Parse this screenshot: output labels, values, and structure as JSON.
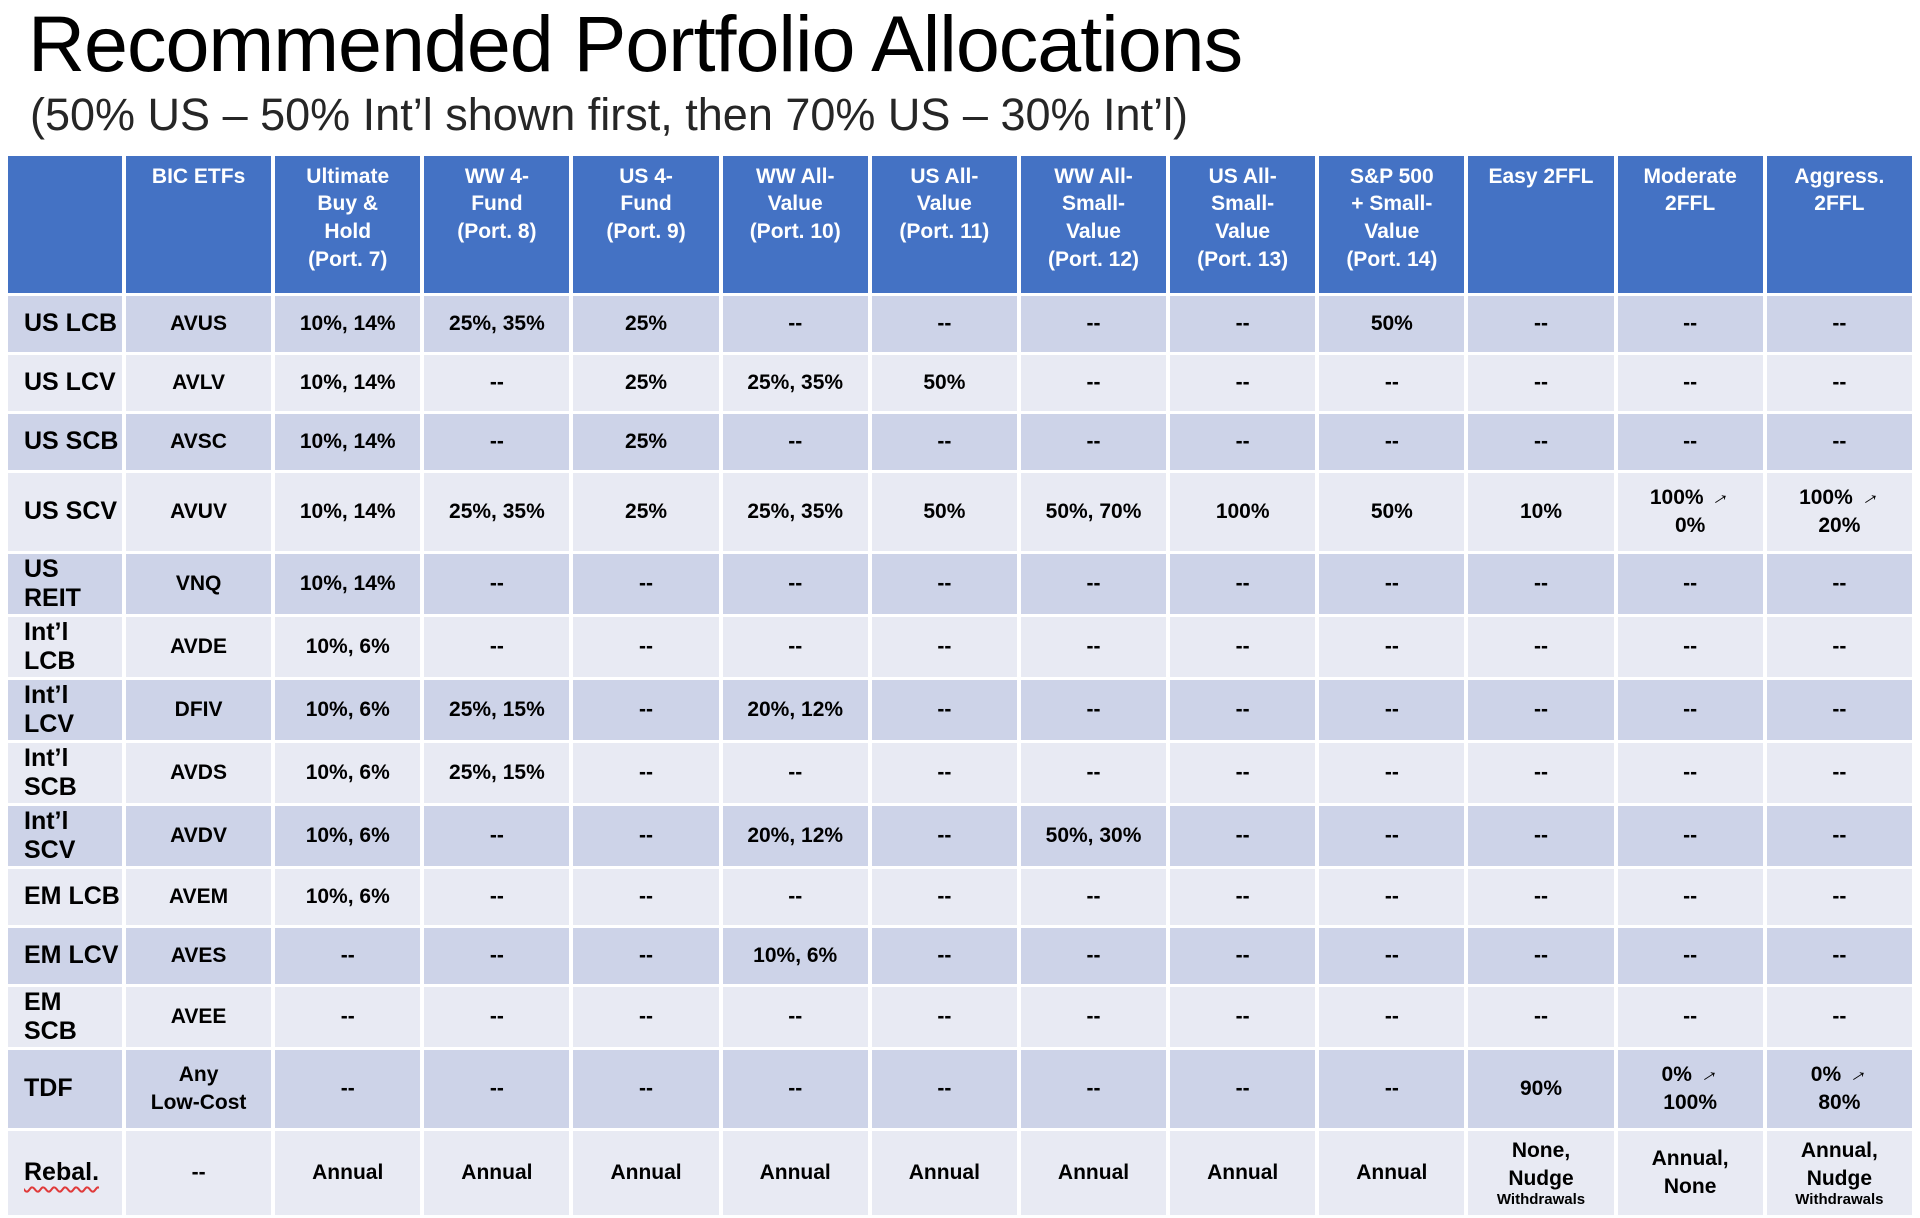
{
  "page": {
    "title": "Recommended Portfolio Allocations",
    "subtitle": "(50% US – 50% Int’l shown first, then 70% US – 30% Int’l)"
  },
  "colors": {
    "header_bg": "#4472C4",
    "header_text": "#FFFFFF",
    "band_dark": "#CDD3E8",
    "band_light": "#E8EAF3",
    "spellcheck_underline": "#E03A3A"
  },
  "table": {
    "columns": [
      "",
      "BIC ETFs",
      "Ultimate\nBuy &\nHold\n(Port. 7)",
      "WW 4-\nFund\n(Port. 8)",
      "US 4-\nFund\n(Port. 9)",
      "WW All-\nValue\n(Port. 10)",
      "US All-\nValue\n(Port. 11)",
      "WW All-\nSmall-\nValue\n(Port. 12)",
      "US All-\nSmall-\nValue\n(Port. 13)",
      "S&P 500\n+ Small-\nValue\n(Port. 14)",
      "Easy 2FFL",
      "Moderate\n2FFL",
      "Aggress.\n2FFL"
    ],
    "rows": [
      {
        "label": "US LCB",
        "size": "normal",
        "cells": [
          "AVUS",
          "10%, 14%",
          "25%, 35%",
          "25%",
          "--",
          "--",
          "--",
          "--",
          "50%",
          "--",
          "--",
          "--"
        ]
      },
      {
        "label": "US LCV",
        "size": "normal",
        "cells": [
          "AVLV",
          "10%, 14%",
          "--",
          "25%",
          "25%, 35%",
          "50%",
          "--",
          "--",
          "--",
          "--",
          "--",
          "--"
        ]
      },
      {
        "label": "US SCB",
        "size": "normal",
        "cells": [
          "AVSC",
          "10%, 14%",
          "--",
          "25%",
          "--",
          "--",
          "--",
          "--",
          "--",
          "--",
          "--",
          "--"
        ]
      },
      {
        "label": "US SCV",
        "size": "tall",
        "cells": [
          "AVUV",
          "10%, 14%",
          "25%, 35%",
          "25%",
          "25%, 35%",
          "50%",
          "50%, 70%",
          "100%",
          "50%",
          "10%",
          "100% →\n0%",
          "100% →\n20%"
        ]
      },
      {
        "label": "US REIT",
        "size": "normal",
        "cells": [
          "VNQ",
          "10%, 14%",
          "--",
          "--",
          "--",
          "--",
          "--",
          "--",
          "--",
          "--",
          "--",
          "--"
        ]
      },
      {
        "label": "Int’l LCB",
        "size": "normal",
        "cells": [
          "AVDE",
          "10%, 6%",
          "--",
          "--",
          "--",
          "--",
          "--",
          "--",
          "--",
          "--",
          "--",
          "--"
        ]
      },
      {
        "label": "Int’l LCV",
        "size": "normal",
        "cells": [
          "DFIV",
          "10%, 6%",
          "25%, 15%",
          "--",
          "20%, 12%",
          "--",
          "--",
          "--",
          "--",
          "--",
          "--",
          "--"
        ]
      },
      {
        "label": "Int’l SCB",
        "size": "normal",
        "cells": [
          "AVDS",
          "10%, 6%",
          "25%, 15%",
          "--",
          "--",
          "--",
          "--",
          "--",
          "--",
          "--",
          "--",
          "--"
        ]
      },
      {
        "label": "Int’l SCV",
        "size": "normal",
        "cells": [
          "AVDV",
          "10%, 6%",
          "--",
          "--",
          "20%, 12%",
          "--",
          "50%, 30%",
          "--",
          "--",
          "--",
          "--",
          "--"
        ]
      },
      {
        "label": "EM LCB",
        "size": "normal",
        "cells": [
          "AVEM",
          "10%, 6%",
          "--",
          "--",
          "--",
          "--",
          "--",
          "--",
          "--",
          "--",
          "--",
          "--"
        ]
      },
      {
        "label": "EM LCV",
        "size": "normal",
        "cells": [
          "AVES",
          "--",
          "--",
          "--",
          "10%, 6%",
          "--",
          "--",
          "--",
          "--",
          "--",
          "--",
          "--"
        ]
      },
      {
        "label": "EM SCB",
        "size": "normal",
        "cells": [
          "AVEE",
          "--",
          "--",
          "--",
          "--",
          "--",
          "--",
          "--",
          "--",
          "--",
          "--",
          "--"
        ]
      },
      {
        "label": "TDF",
        "size": "tall",
        "cells": [
          "Any\nLow-Cost",
          "--",
          "--",
          "--",
          "--",
          "--",
          "--",
          "--",
          "--",
          "90%",
          "0% →\n100%",
          "0% →\n80%"
        ]
      },
      {
        "label": "Rebal.",
        "size": "rebal",
        "spellcheck": true,
        "cells": [
          "--",
          "Annual",
          "Annual",
          "Annual",
          "Annual",
          "Annual",
          "Annual",
          "Annual",
          "Annual",
          {
            "main": "None,\nNudge",
            "small": "Withdrawals"
          },
          {
            "main": "Annual,\nNone"
          },
          {
            "main": "Annual,\nNudge",
            "small": "Withdrawals"
          }
        ]
      }
    ]
  }
}
